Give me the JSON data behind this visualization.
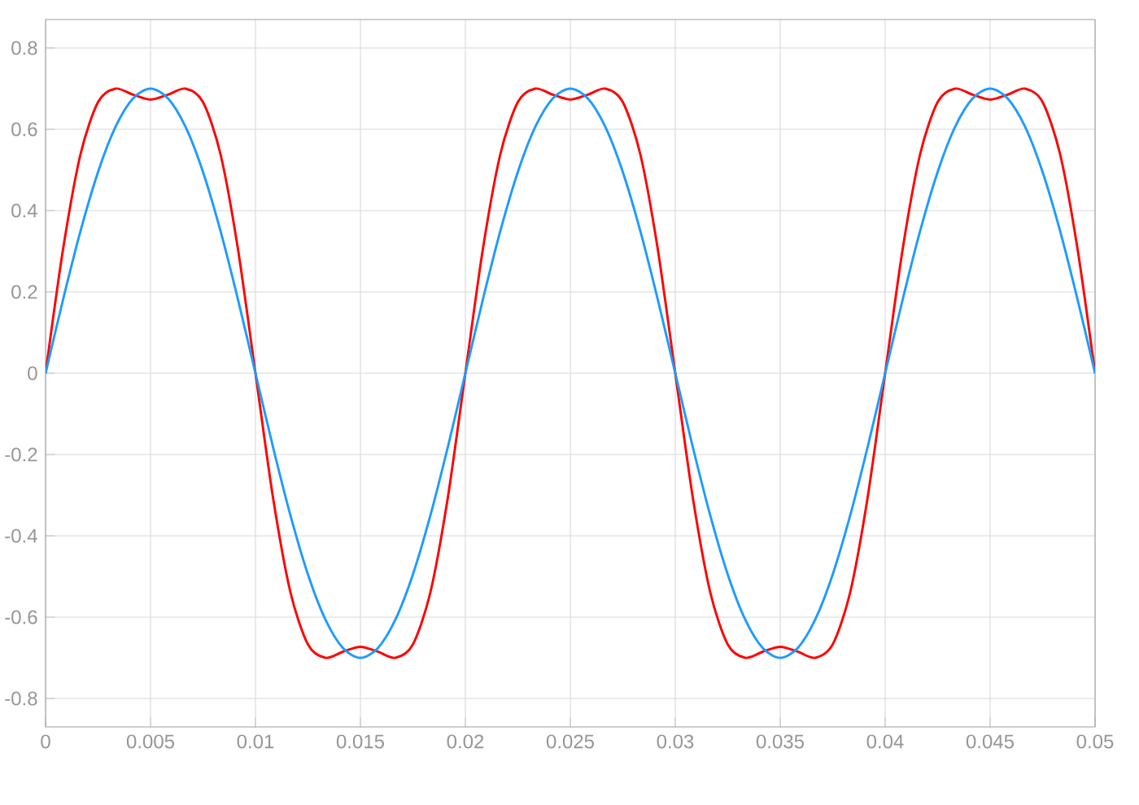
{
  "chart_data": {
    "type": "line",
    "x": [
      0,
      0.000833,
      0.001667,
      0.0025,
      0.003333,
      0.004167,
      0.005,
      0.005833,
      0.006667,
      0.0075,
      0.008333,
      0.009167,
      0.01,
      0.010833,
      0.011667,
      0.0125,
      0.013333,
      0.014167,
      0.015,
      0.015833,
      0.016667,
      0.0175,
      0.018333,
      0.019167,
      0.02,
      0.020833,
      0.021667,
      0.0225,
      0.023333,
      0.024167,
      0.025,
      0.025833,
      0.026667,
      0.0275,
      0.028333,
      0.029167,
      0.03,
      0.030833,
      0.031667,
      0.0325,
      0.033333,
      0.034167,
      0.035,
      0.035833,
      0.036667,
      0.0375,
      0.038333,
      0.039167,
      0.04,
      0.040833,
      0.041667,
      0.0425,
      0.043333,
      0.044167,
      0.045,
      0.045833,
      0.046667,
      0.0475,
      0.048333,
      0.049167,
      0.05
    ],
    "series": [
      {
        "color": "#ff0000",
        "values": [
          0,
          0.305,
          0.539,
          0.667,
          0.7,
          0.685,
          0.673,
          0.685,
          0.7,
          0.667,
          0.539,
          0.305,
          0,
          -0.305,
          -0.539,
          -0.667,
          -0.7,
          -0.685,
          -0.673,
          -0.685,
          -0.7,
          -0.667,
          -0.539,
          -0.305,
          0,
          0.305,
          0.539,
          0.667,
          0.7,
          0.685,
          0.673,
          0.685,
          0.7,
          0.667,
          0.539,
          0.305,
          0,
          -0.305,
          -0.539,
          -0.667,
          -0.7,
          -0.685,
          -0.673,
          -0.685,
          -0.7,
          -0.667,
          -0.539,
          -0.305,
          0,
          0.305,
          0.539,
          0.667,
          0.7,
          0.685,
          0.673,
          0.685,
          0.7,
          0.667,
          0.539,
          0.305,
          0
        ]
      },
      {
        "color": "#1e9bff",
        "values": [
          0,
          0.181,
          0.35,
          0.495,
          0.606,
          0.676,
          0.7,
          0.676,
          0.606,
          0.495,
          0.35,
          0.181,
          0,
          -0.181,
          -0.35,
          -0.495,
          -0.606,
          -0.676,
          -0.7,
          -0.676,
          -0.606,
          -0.495,
          -0.35,
          -0.181,
          0,
          0.181,
          0.35,
          0.495,
          0.606,
          0.676,
          0.7,
          0.676,
          0.606,
          0.495,
          0.35,
          0.181,
          0,
          -0.181,
          -0.35,
          -0.495,
          -0.606,
          -0.676,
          -0.7,
          -0.676,
          -0.606,
          -0.495,
          -0.35,
          -0.181,
          0,
          0.181,
          0.35,
          0.495,
          0.606,
          0.676,
          0.7,
          0.676,
          0.606,
          0.495,
          0.35,
          0.181,
          0
        ]
      }
    ],
    "xlim": [
      0,
      0.05
    ],
    "xticks": [
      0,
      0.005,
      0.01,
      0.015,
      0.02,
      0.025,
      0.03,
      0.035,
      0.04,
      0.045,
      0.05
    ],
    "ylim": [
      -0.87,
      0.87
    ],
    "yticks": [
      -0.8,
      -0.6,
      -0.4,
      -0.2,
      0,
      0.2,
      0.4,
      0.6,
      0.8
    ],
    "grid": true,
    "marker": "none",
    "line_style": "solid"
  }
}
